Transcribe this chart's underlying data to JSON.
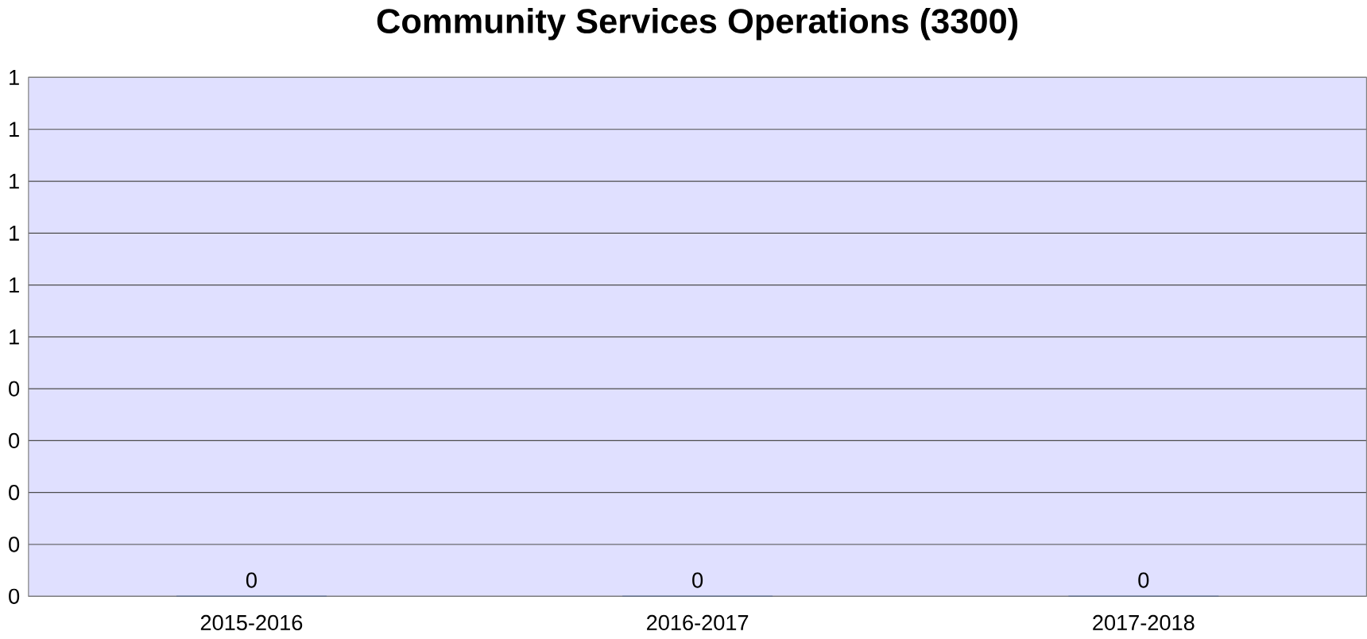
{
  "chart_data": {
    "type": "bar",
    "title": "Community Services Operations (3300)",
    "categories": [
      "2015-2016",
      "2016-2017",
      "2017-2018"
    ],
    "values": [
      0,
      0,
      0
    ],
    "color": "#1f4e99",
    "data_labels": true,
    "grid": "y",
    "ylim": [
      0,
      1
    ],
    "yticks": [
      {
        "value": 0,
        "label": "0"
      },
      {
        "value": 0.1,
        "label": "0"
      },
      {
        "value": 0.2,
        "label": "0"
      },
      {
        "value": 0.3,
        "label": "0"
      },
      {
        "value": 0.4,
        "label": "0"
      },
      {
        "value": 0.5,
        "label": "1"
      },
      {
        "value": 0.6,
        "label": "1"
      },
      {
        "value": 0.7,
        "label": "1"
      },
      {
        "value": 0.8,
        "label": "1"
      },
      {
        "value": 0.9,
        "label": "1"
      },
      {
        "value": 1,
        "label": "1"
      }
    ]
  }
}
